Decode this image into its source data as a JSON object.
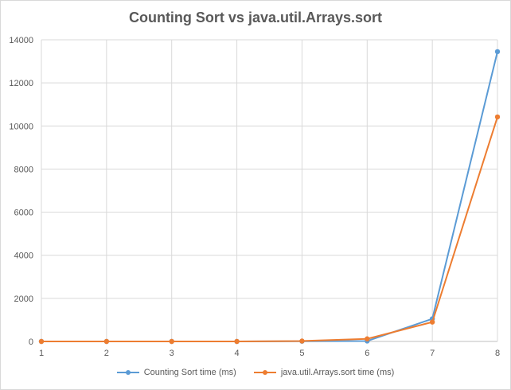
{
  "chart_data": {
    "type": "line",
    "title": "Counting Sort vs java.util.Arrays.sort",
    "xlabel": "",
    "ylabel": "",
    "x": [
      1,
      2,
      3,
      4,
      5,
      6,
      7,
      8
    ],
    "ylim": [
      0,
      14000
    ],
    "yticks": [
      0,
      2000,
      4000,
      6000,
      8000,
      10000,
      12000,
      14000
    ],
    "grid": true,
    "legend_position": "bottom",
    "series": [
      {
        "name": "Counting Sort time (ms)",
        "color": "#5b9bd5",
        "values": [
          0,
          0,
          0,
          0,
          10,
          20,
          1050,
          13450
        ]
      },
      {
        "name": "java.util.Arrays.sort time (ms)",
        "color": "#ed7d31",
        "values": [
          0,
          0,
          0,
          0,
          20,
          120,
          900,
          10420
        ]
      }
    ]
  }
}
